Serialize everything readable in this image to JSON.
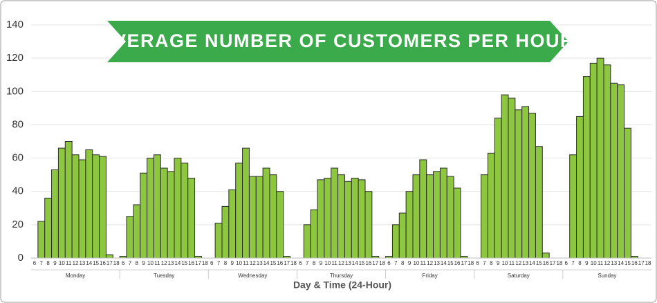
{
  "chart_data": {
    "type": "bar",
    "title": "AVERAGE NUMBER OF CUSTOMERS PER HOUR",
    "x_label": "Day & Time (24-Hour)",
    "hours": [
      "6",
      "7",
      "8",
      "9",
      "10",
      "11",
      "12",
      "13",
      "14",
      "15",
      "16",
      "17",
      "18"
    ],
    "groups": [
      {
        "name": "Monday",
        "values": [
          0,
          22,
          36,
          53,
          66,
          70,
          62,
          59,
          65,
          62,
          61,
          2,
          0
        ]
      },
      {
        "name": "Tuesday",
        "values": [
          1,
          25,
          32,
          51,
          60,
          62,
          54,
          52,
          60,
          57,
          48,
          1,
          0
        ]
      },
      {
        "name": "Wednesday",
        "values": [
          0,
          21,
          31,
          41,
          57,
          66,
          49,
          49,
          54,
          50,
          40,
          1,
          0
        ]
      },
      {
        "name": "Thursday",
        "values": [
          0,
          20,
          29,
          47,
          48,
          54,
          50,
          46,
          48,
          47,
          40,
          1,
          0
        ]
      },
      {
        "name": "Friday",
        "values": [
          1,
          20,
          27,
          40,
          50,
          59,
          50,
          52,
          54,
          49,
          42,
          1,
          0
        ]
      },
      {
        "name": "Saturday",
        "values": [
          0,
          50,
          63,
          84,
          98,
          96,
          89,
          91,
          87,
          67,
          3,
          0,
          0
        ]
      },
      {
        "name": "Sunday",
        "values": [
          0,
          62,
          85,
          109,
          117,
          120,
          116,
          105,
          104,
          78,
          1,
          0,
          0
        ]
      }
    ],
    "color": "#8dc63f",
    "ylim": [
      0,
      140
    ],
    "yticks": [
      0,
      20,
      40,
      60,
      80,
      100,
      120,
      140
    ],
    "grid": true
  }
}
